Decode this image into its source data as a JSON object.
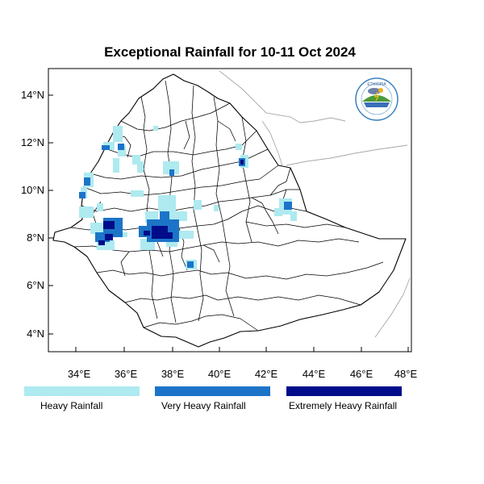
{
  "title": "Exceptional Rainfall for 10-11 Oct 2024",
  "axes": {
    "lat_ticks": [
      "4°N",
      "6°N",
      "8°N",
      "10°N",
      "12°N",
      "14°N"
    ],
    "lon_ticks": [
      "34°E",
      "36°E",
      "38°E",
      "40°E",
      "42°E",
      "44°E",
      "46°E",
      "48°E"
    ]
  },
  "legend": [
    {
      "label": "Heavy Rainfall",
      "color": "#aeeaf0"
    },
    {
      "label": "Very Heavy Rainfall",
      "color": "#1c74c8"
    },
    {
      "label": "Extremely Heavy Rainfall",
      "color": "#000c8a"
    }
  ],
  "logo": {
    "name": "ethiopian-meteorology-institute-logo",
    "text": "Ethiopian Meteorology Institute"
  }
}
